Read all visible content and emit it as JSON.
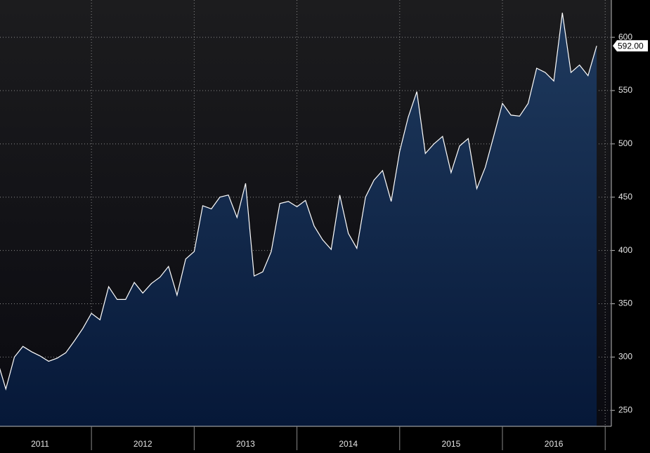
{
  "chart_data": {
    "type": "area",
    "x": [
      2011.083,
      2011.167,
      2011.25,
      2011.333,
      2011.417,
      2011.5,
      2011.583,
      2011.667,
      2011.75,
      2011.833,
      2011.917,
      2012,
      2012.083,
      2012.167,
      2012.25,
      2012.333,
      2012.417,
      2012.5,
      2012.583,
      2012.667,
      2012.75,
      2012.833,
      2012.917,
      2013,
      2013.083,
      2013.167,
      2013.25,
      2013.333,
      2013.417,
      2013.5,
      2013.583,
      2013.667,
      2013.75,
      2013.833,
      2013.917,
      2014,
      2014.083,
      2014.167,
      2014.25,
      2014.333,
      2014.417,
      2014.5,
      2014.583,
      2014.667,
      2014.75,
      2014.833,
      2014.917,
      2015,
      2015.083,
      2015.167,
      2015.25,
      2015.333,
      2015.417,
      2015.5,
      2015.583,
      2015.667,
      2015.75,
      2015.833,
      2015.917,
      2016,
      2016.083,
      2016.167,
      2016.25,
      2016.333,
      2016.417,
      2016.5,
      2016.583,
      2016.667,
      2016.75,
      2016.833,
      2016.917
    ],
    "values": [
      297,
      270,
      300,
      310,
      305,
      301,
      296,
      299,
      304,
      315,
      327,
      341,
      335,
      366,
      354,
      354,
      370,
      360,
      369,
      375,
      385,
      358,
      392,
      399,
      442,
      439,
      450,
      452,
      431,
      463,
      376,
      380,
      399,
      444,
      446,
      441,
      447,
      423,
      410,
      401,
      452,
      416,
      402,
      450,
      466,
      475,
      446,
      493,
      525,
      549,
      491,
      500,
      507,
      473,
      498,
      505,
      458,
      478,
      508,
      538,
      527,
      526,
      538,
      571,
      567,
      559,
      623,
      567,
      574,
      564,
      592
    ],
    "value_labels": [
      null,
      null,
      null,
      null,
      null,
      null,
      null,
      null,
      null,
      null,
      null,
      null,
      null,
      null,
      null,
      null,
      null,
      null,
      null,
      null,
      null,
      null,
      null,
      null,
      null,
      null,
      null,
      null,
      null,
      null,
      null,
      null,
      null,
      null,
      null,
      null,
      null,
      null,
      null,
      null,
      null,
      null,
      null,
      null,
      null,
      null,
      null,
      null,
      null,
      null,
      null,
      null,
      null,
      null,
      null,
      null,
      null,
      null,
      null,
      null,
      null,
      null,
      null,
      null,
      null,
      null,
      null,
      null,
      null,
      null,
      "592.00"
    ],
    "color": "#ffffff",
    "xlim": [
      2011.11,
      2017.06
    ],
    "xticks": [
      {
        "value": 2011.5,
        "label": "2011"
      },
      {
        "value": 2012.5,
        "label": "2012"
      },
      {
        "value": 2013.5,
        "label": "2013"
      },
      {
        "value": 2014.5,
        "label": "2014"
      },
      {
        "value": 2015.5,
        "label": "2015"
      },
      {
        "value": 2016.5,
        "label": "2016"
      }
    ],
    "ylim": [
      235,
      635
    ],
    "yticks": [
      250,
      300,
      350,
      400,
      450,
      500,
      550,
      600
    ],
    "grid": true
  }
}
